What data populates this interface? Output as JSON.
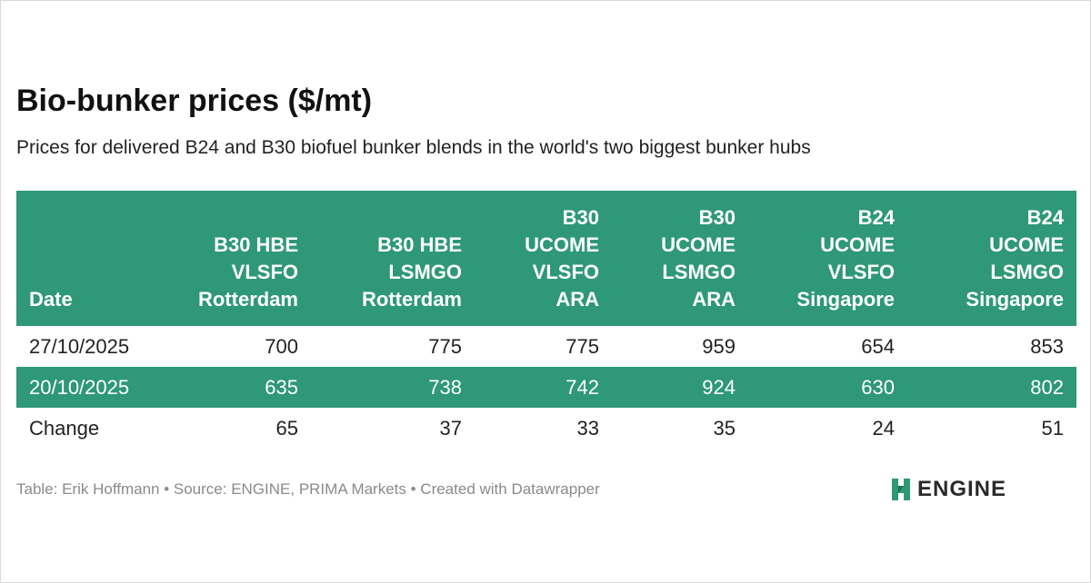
{
  "chart_data": {
    "type": "table",
    "title": "Bio-bunker prices ($/mt)",
    "subtitle": "Prices for delivered B24 and B30 biofuel bunker blends in the world's two biggest bunker hubs",
    "columns": [
      {
        "lines": [
          "Date"
        ]
      },
      {
        "lines": [
          "B30 HBE",
          "VLSFO",
          "Rotterdam"
        ]
      },
      {
        "lines": [
          "B30 HBE",
          "LSMGO",
          "Rotterdam"
        ]
      },
      {
        "lines": [
          "B30",
          "UCOME",
          "VLSFO",
          "ARA"
        ]
      },
      {
        "lines": [
          "B30",
          "UCOME",
          "LSMGO",
          "ARA"
        ]
      },
      {
        "lines": [
          "B24",
          "UCOME",
          "VLSFO",
          "Singapore"
        ]
      },
      {
        "lines": [
          "B24",
          "UCOME",
          "LSMGO",
          "Singapore"
        ]
      }
    ],
    "rows": [
      {
        "cells": [
          "27/10/2025",
          "700",
          "775",
          "775",
          "959",
          "654",
          "853"
        ]
      },
      {
        "cells": [
          "20/10/2025",
          "635",
          "738",
          "742",
          "924",
          "630",
          "802"
        ]
      },
      {
        "cells": [
          "Change",
          "65",
          "37",
          "33",
          "35",
          "24",
          "51"
        ]
      }
    ],
    "header_color": "#2e9877"
  },
  "footer": {
    "text": "Table: Erik Hoffmann • Source: ENGINE, PRIMA Markets • Created with Datawrapper"
  },
  "logo": {
    "text": "ENGINE",
    "icon": "engine-logo-icon",
    "color": "#2e9877"
  }
}
